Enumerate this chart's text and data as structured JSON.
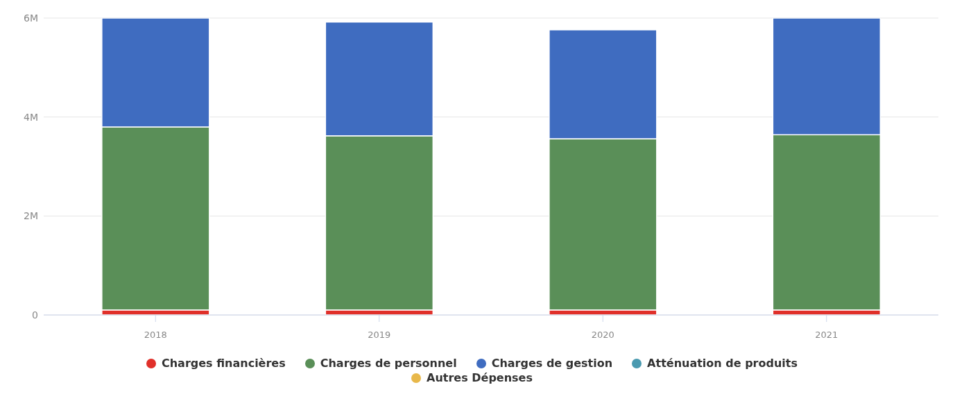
{
  "chart_data": {
    "type": "bar",
    "stacked": true,
    "categories": [
      "2018",
      "2019",
      "2020",
      "2021"
    ],
    "series": [
      {
        "name": "Charges financières",
        "color": "#e0302a",
        "values": [
          100000,
          100000,
          100000,
          100000
        ]
      },
      {
        "name": "Charges de personnel",
        "color": "#5a8f58",
        "values": [
          3700000,
          3520000,
          3460000,
          3540000
        ]
      },
      {
        "name": "Charges de gestion",
        "color": "#3f6cc0",
        "values": [
          2200000,
          2300000,
          2200000,
          2360000
        ]
      },
      {
        "name": "Atténuation de produits",
        "color": "#4a9ab0",
        "values": [
          0,
          0,
          0,
          0
        ]
      },
      {
        "name": "Autres Dépenses",
        "color": "#e8b84a",
        "values": [
          0,
          0,
          0,
          0
        ]
      }
    ],
    "ylim": [
      0,
      6000000
    ],
    "yticks": [
      {
        "value": 0,
        "label": "0"
      },
      {
        "value": 2000000,
        "label": "2M"
      },
      {
        "value": 4000000,
        "label": "4M"
      },
      {
        "value": 6000000,
        "label": "6M"
      }
    ],
    "grid": "y",
    "legend": "bottom"
  }
}
